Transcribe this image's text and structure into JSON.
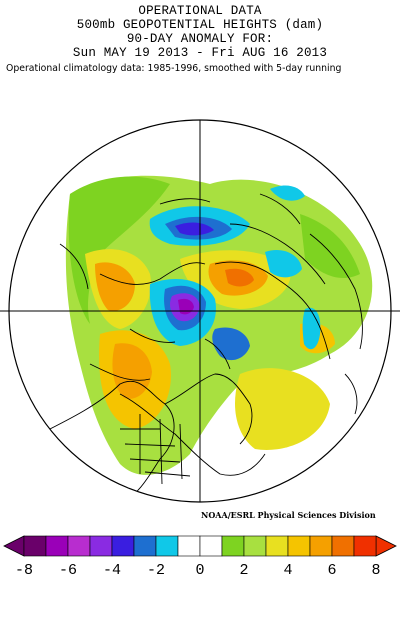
{
  "header": {
    "line1": "OPERATIONAL DATA",
    "line2": "500mb GEOPOTENTIAL HEIGHTS (dam)",
    "line3": "90-DAY ANOMALY FOR:",
    "line4": "Sun MAY 19 2013 - Fri AUG 16 2013"
  },
  "subtitle": "Operational climatology data: 1985-1996, smoothed with 5-day running",
  "credit": "NOAA/ESRL Physical Sciences Division",
  "colorbar": {
    "colors": [
      "#6a006a",
      "#9a00b8",
      "#b82dcf",
      "#8a2be2",
      "#3a1ee0",
      "#1e6fd0",
      "#10c8e8",
      "#ffffff",
      "#ffffff",
      "#7ed321",
      "#a8e040",
      "#e8e020",
      "#f5c400",
      "#f5a000",
      "#f07000",
      "#f03000"
    ],
    "ticks": [
      "-8",
      "-6",
      "-4",
      "-2",
      "0",
      "2",
      "4",
      "6",
      "8"
    ]
  }
}
